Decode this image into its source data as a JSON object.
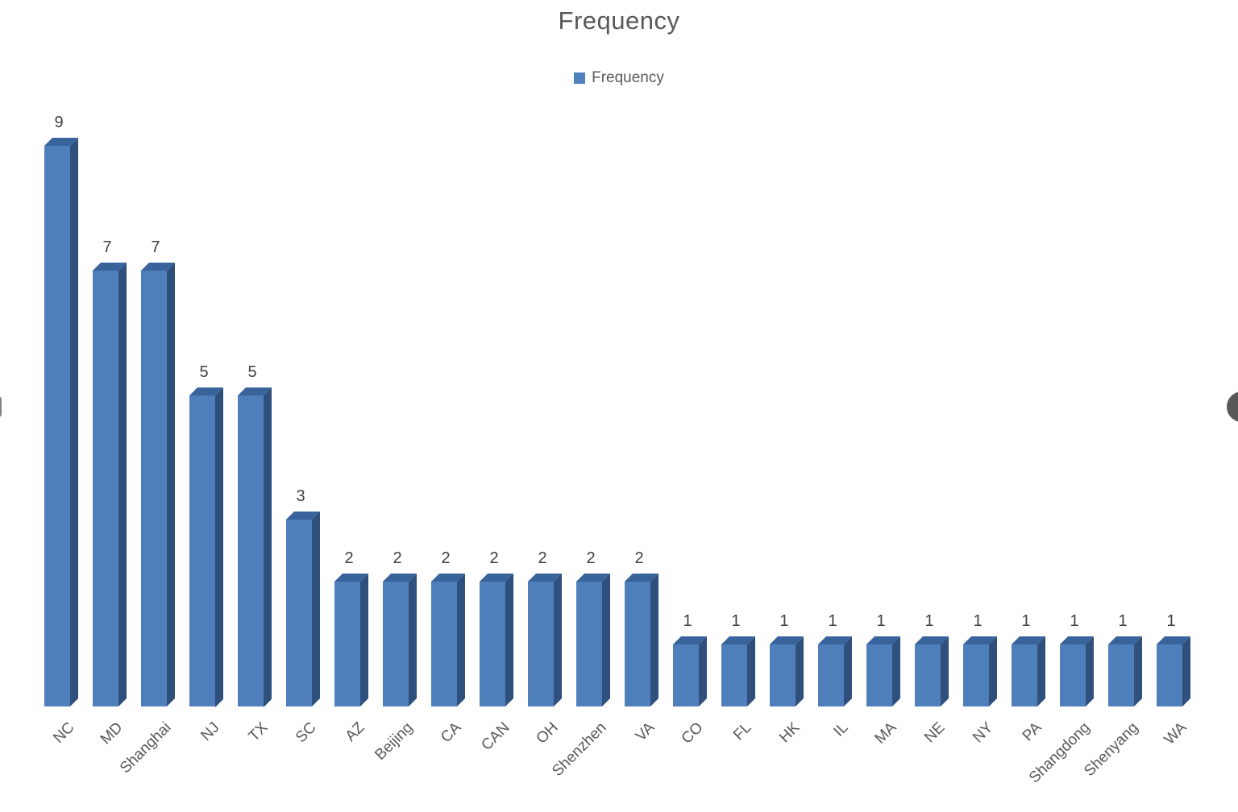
{
  "title": "Frequency",
  "legend": {
    "label": "Frequency",
    "swatch_icon": "legend-square-icon"
  },
  "colors": {
    "accent": "#4f81bd",
    "bar_front": "#4e7fba",
    "bar_side": "#2f4f7c",
    "bar_top": "#38639b",
    "title_text": "#595959",
    "axis_text": "#595959",
    "value_text": "#404040",
    "nav_circle": "#58585a"
  },
  "icons": {
    "nav_right": "next-page-circle-icon",
    "nav_left": "prev-page-circle-icon"
  },
  "chart_data": {
    "type": "bar",
    "title": "Frequency",
    "legend_entries": [
      "Frequency"
    ],
    "legend_position": "top-center",
    "grid": false,
    "style": "3d-column",
    "value_labels_shown": true,
    "xlabel": "",
    "ylabel": "",
    "ylim": [
      0,
      9
    ],
    "categories": [
      "NC",
      "MD",
      "Shanghai",
      "NJ",
      "TX",
      "SC",
      "AZ",
      "Beijing",
      "CA",
      "CAN",
      "OH",
      "Shenzhen",
      "VA",
      "CO",
      "FL",
      "HK",
      "IL",
      "MA",
      "NE",
      "NY",
      "PA",
      "Shangdong",
      "Shenyang",
      "WA"
    ],
    "series": [
      {
        "name": "Frequency",
        "values": [
          9,
          7,
          7,
          5,
          5,
          3,
          2,
          2,
          2,
          2,
          2,
          2,
          2,
          1,
          1,
          1,
          1,
          1,
          1,
          1,
          1,
          1,
          1,
          1
        ]
      }
    ]
  }
}
